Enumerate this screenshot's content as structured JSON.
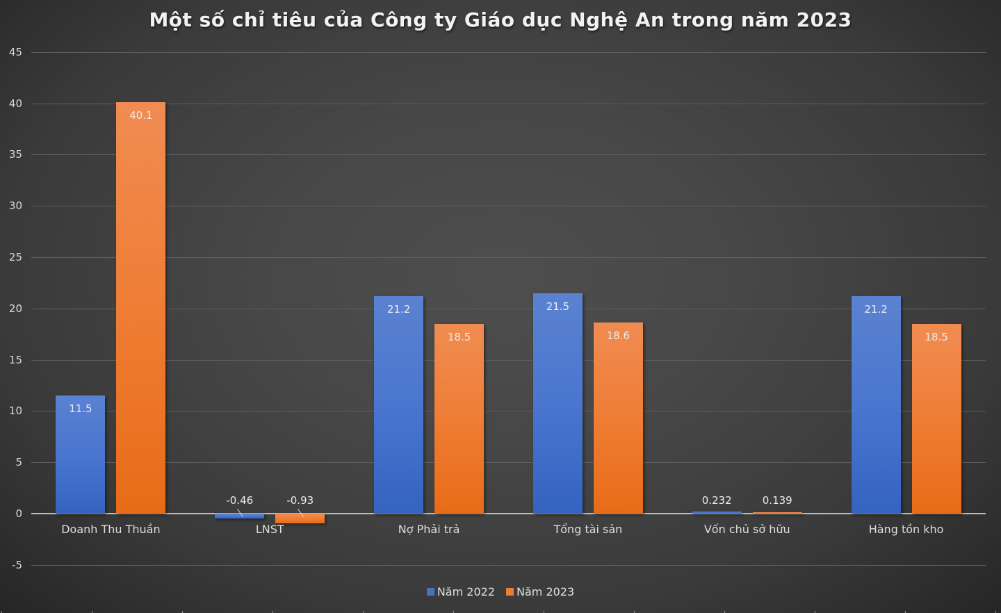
{
  "chart_data": {
    "type": "bar",
    "title": "Một số chỉ tiêu của Công ty Giáo dục Nghệ An trong năm 2023",
    "xlabel": "",
    "ylabel": "",
    "categories": [
      "Doanh Thu Thuần",
      "LNST",
      "Nợ Phải trả",
      "Tổng tài sản",
      "Vốn chủ sở hữu",
      "Hàng tồn kho"
    ],
    "series": [
      {
        "name": "Năm 2022",
        "color": "#4472c4",
        "values": [
          11.5,
          -0.46,
          21.2,
          21.5,
          0.232,
          21.2
        ],
        "labels": [
          "11.5",
          "-0.46",
          "21.2",
          "21.5",
          "0.232",
          "21.2"
        ]
      },
      {
        "name": "Năm 2023",
        "color": "#ed7d31",
        "values": [
          40.1,
          -0.93,
          18.5,
          18.6,
          0.139,
          18.5
        ],
        "labels": [
          "40.1",
          "-0.93",
          "18.5",
          "18.6",
          "0.139",
          "18.5"
        ]
      }
    ],
    "ylim": [
      -5,
      45
    ],
    "yticks": [
      "45",
      "40",
      "35",
      "30",
      "25",
      "20",
      "15",
      "10",
      "5",
      "0",
      "-5"
    ],
    "grid": true,
    "legend_position": "bottom"
  }
}
